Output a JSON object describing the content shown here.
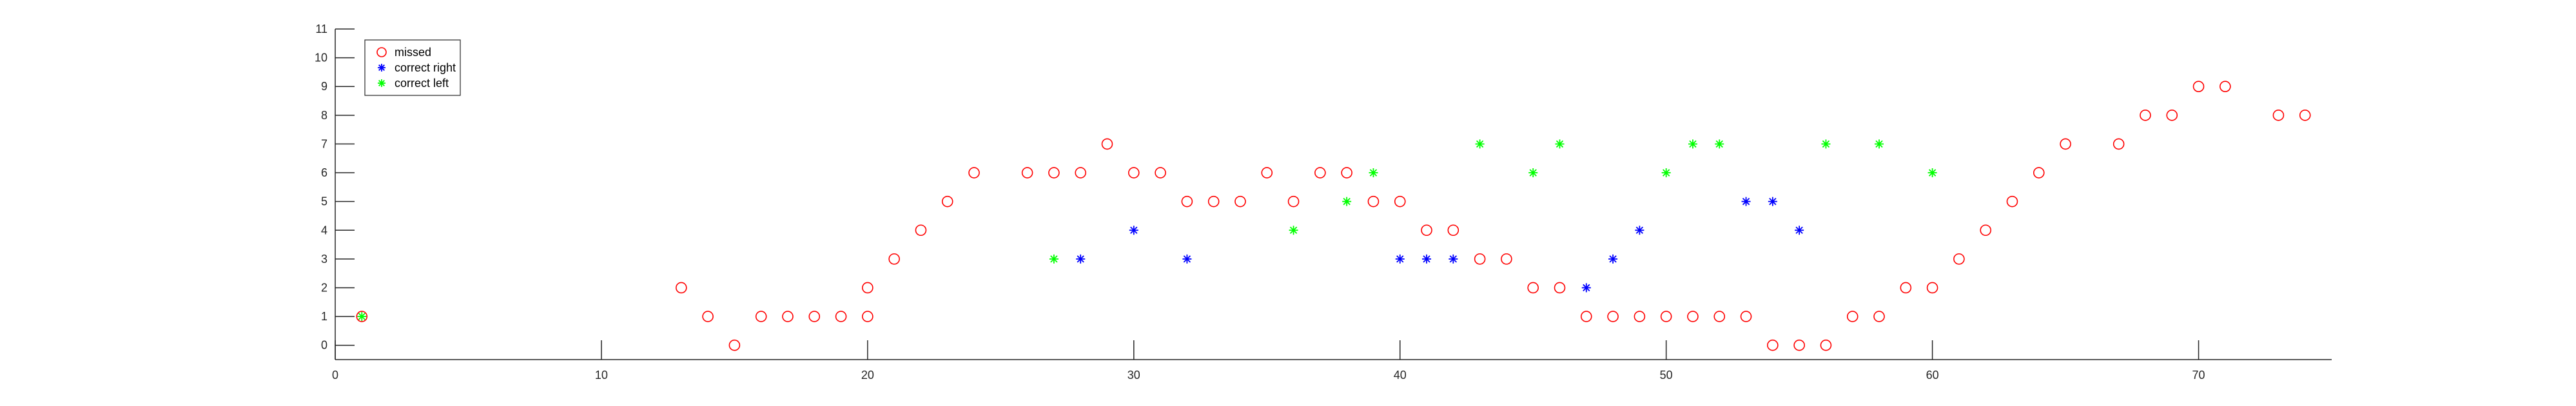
{
  "chart_data": {
    "type": "scatter",
    "title": "",
    "xlabel": "",
    "ylabel": "",
    "xlim": [
      0,
      75
    ],
    "ylim": [
      -0.5,
      11
    ],
    "xticks": [
      0,
      10,
      20,
      30,
      40,
      50,
      60,
      70
    ],
    "yticks": [
      0,
      1,
      2,
      3,
      4,
      5,
      6,
      7,
      8,
      9,
      10,
      11
    ],
    "grid": false,
    "legend_position": "top-left",
    "series": [
      {
        "name": "missed",
        "marker": "circle",
        "color": "#ff0000",
        "x": [
          1,
          13,
          14,
          15,
          16,
          17,
          18,
          19,
          20,
          20,
          21,
          22,
          23,
          24,
          26,
          27,
          28,
          29,
          30,
          31,
          32,
          33,
          34,
          35,
          36,
          37,
          38,
          39,
          40,
          41,
          42,
          43,
          44,
          45,
          46,
          47,
          48,
          49,
          50,
          51,
          52,
          53,
          54,
          55,
          56,
          57,
          58,
          59,
          60,
          61,
          62,
          63,
          64,
          65,
          67,
          68,
          69,
          70,
          71,
          73,
          74
        ],
        "y": [
          1,
          2,
          1,
          0,
          1,
          1,
          1,
          1,
          1,
          2,
          3,
          4,
          5,
          6,
          6,
          6,
          6,
          7,
          6,
          6,
          5,
          5,
          5,
          6,
          5,
          6,
          6,
          5,
          5,
          4,
          4,
          3,
          3,
          2,
          2,
          1,
          1,
          1,
          1,
          1,
          1,
          1,
          0,
          0,
          0,
          1,
          1,
          2,
          2,
          3,
          4,
          5,
          6,
          7,
          7,
          8,
          8,
          9,
          9,
          8,
          8
        ]
      },
      {
        "name": "correct right",
        "marker": "asterisk",
        "color": "#0000ff",
        "x": [
          28,
          30,
          32,
          40,
          41,
          42,
          47,
          48,
          49,
          53,
          54,
          55
        ],
        "y": [
          3,
          4,
          3,
          3,
          3,
          3,
          2,
          3,
          4,
          5,
          5,
          4
        ]
      },
      {
        "name": "correct left",
        "marker": "asterisk",
        "color": "#00ff00",
        "x": [
          1,
          27,
          36,
          38,
          39,
          43,
          45,
          46,
          50,
          51,
          52,
          56,
          58,
          60
        ],
        "y": [
          1,
          3,
          4,
          5,
          6,
          7,
          6,
          7,
          6,
          7,
          7,
          7,
          7,
          6
        ]
      }
    ]
  }
}
